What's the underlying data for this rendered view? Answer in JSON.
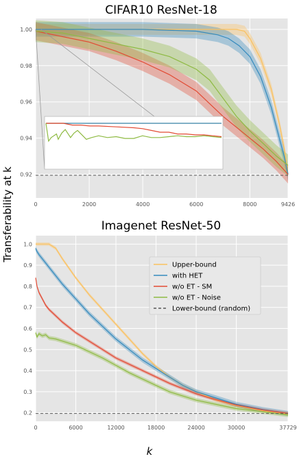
{
  "figure": {
    "ylabel": "Transferability at k",
    "xlabel": "k"
  },
  "colors": {
    "upper": "#fbc15e",
    "het": "#348abd",
    "sm": "#e24a33",
    "noise": "#8eba42",
    "lower": "#555555",
    "panel_bg": "#e5e5e5",
    "grid": "#ffffff"
  },
  "chart_data": [
    {
      "type": "line",
      "title": "CIFAR10 ResNet-18",
      "xlabel": "",
      "ylabel": "",
      "xlim": [
        0,
        9426
      ],
      "ylim": [
        0.907,
        1.006
      ],
      "xticks": [
        "0",
        "2000",
        "4000",
        "6000",
        "8000",
        "9426"
      ],
      "xtick_values": [
        0,
        2000,
        4000,
        6000,
        8000,
        9426
      ],
      "yticks": [
        "0.92",
        "0.94",
        "0.96",
        "0.98",
        "1.00"
      ],
      "ytick_values": [
        0.92,
        0.94,
        0.96,
        0.98,
        1.0
      ],
      "grid": true,
      "legend": "none",
      "series": [
        {
          "key": "upper",
          "x": [
            0,
            2000,
            4000,
            6000,
            7500,
            7800,
            8000,
            8400,
            8800,
            9100,
            9300,
            9426
          ],
          "values": [
            1.0,
            1.0,
            1.0,
            1.0,
            1.0,
            0.999,
            0.995,
            0.984,
            0.967,
            0.948,
            0.933,
            0.92
          ],
          "band": 0.003
        },
        {
          "key": "het",
          "x": [
            0,
            2000,
            4000,
            6000,
            6800,
            7200,
            7600,
            8000,
            8400,
            8800,
            9100,
            9300,
            9426
          ],
          "values": [
            1.0,
            1.0,
            1.0,
            0.999,
            0.997,
            0.995,
            0.991,
            0.985,
            0.974,
            0.957,
            0.94,
            0.929,
            0.92
          ],
          "band": 0.004
        },
        {
          "key": "sm",
          "x": [
            0,
            1000,
            2000,
            3000,
            4000,
            5000,
            6000,
            6500,
            7000,
            7500,
            8000,
            8500,
            9000,
            9426
          ],
          "values": [
            0.999,
            0.996,
            0.993,
            0.988,
            0.982,
            0.975,
            0.966,
            0.959,
            0.952,
            0.946,
            0.94,
            0.934,
            0.927,
            0.92
          ],
          "band": 0.005
        },
        {
          "key": "noise",
          "x": [
            0,
            1000,
            2000,
            3000,
            4000,
            5000,
            6000,
            6500,
            7000,
            7500,
            8000,
            8500,
            9000,
            9426
          ],
          "values": [
            0.999,
            0.998,
            0.995,
            0.992,
            0.989,
            0.985,
            0.978,
            0.972,
            0.962,
            0.952,
            0.944,
            0.937,
            0.93,
            0.925
          ],
          "band": 0.006
        },
        {
          "key": "lower",
          "x": [
            0,
            9426
          ],
          "values": [
            0.9195,
            0.9195
          ],
          "band": 0
        }
      ],
      "inset": {
        "xlim": [
          0,
          1000
        ],
        "ylim": [
          0.95,
          1.0
        ],
        "series": [
          {
            "key": "upper",
            "x": [
              0,
              1000
            ],
            "values": [
              1.0,
              1.0
            ]
          },
          {
            "key": "het",
            "x": [
              0,
              1000
            ],
            "values": [
              1.0,
              1.0
            ]
          },
          {
            "key": "sm",
            "x": [
              0,
              100,
              150,
              200,
              250,
              300,
              400,
              500,
              550,
              600,
              650,
              700,
              750,
              800,
              850,
              900,
              950,
              1000
            ],
            "values": [
              1.0,
              1.0,
              0.998,
              0.998,
              0.997,
              0.997,
              0.996,
              0.995,
              0.994,
              0.992,
              0.99,
              0.99,
              0.988,
              0.988,
              0.987,
              0.987,
              0.986,
              0.985
            ]
          },
          {
            "key": "noise",
            "x": [
              0,
              15,
              30,
              60,
              70,
              90,
              110,
              140,
              160,
              180,
              200,
              230,
              260,
              300,
              350,
              400,
              450,
              500,
              550,
              600,
              650,
              700,
              750,
              800,
              850,
              900,
              950,
              1000
            ],
            "values": [
              1.0,
              0.98,
              0.984,
              0.988,
              0.982,
              0.989,
              0.993,
              0.984,
              0.989,
              0.992,
              0.988,
              0.982,
              0.984,
              0.986,
              0.984,
              0.985,
              0.983,
              0.983,
              0.986,
              0.984,
              0.984,
              0.985,
              0.986,
              0.985,
              0.985,
              0.986,
              0.985,
              0.984
            ]
          }
        ]
      }
    },
    {
      "type": "line",
      "title": "Imagenet ResNet-50",
      "xlabel": "k",
      "ylabel": "",
      "xlim": [
        0,
        37729
      ],
      "ylim": [
        0.16,
        1.04
      ],
      "xticks": [
        "0",
        "6000",
        "12000",
        "18000",
        "24000",
        "30000",
        "37729"
      ],
      "xtick_values": [
        0,
        6000,
        12000,
        18000,
        24000,
        30000,
        37729
      ],
      "yticks": [
        "0.2",
        "0.3",
        "0.4",
        "0.5",
        "0.6",
        "0.7",
        "0.8",
        "0.9",
        "1.0"
      ],
      "ytick_values": [
        0.2,
        0.3,
        0.4,
        0.5,
        0.6,
        0.7,
        0.8,
        0.9,
        1.0
      ],
      "grid": true,
      "legend": "center",
      "series": [
        {
          "key": "upper",
          "name": "Upper-bound",
          "x": [
            0,
            500,
            1000,
            2000,
            3000,
            4000,
            6000,
            8000,
            10000,
            12000,
            14000,
            16000,
            18000,
            20000,
            22000,
            24000,
            27000,
            30000,
            34000,
            37729
          ],
          "values": [
            1.0,
            1.0,
            1.0,
            1.0,
            0.98,
            0.93,
            0.84,
            0.76,
            0.69,
            0.62,
            0.55,
            0.48,
            0.42,
            0.37,
            0.33,
            0.3,
            0.26,
            0.235,
            0.21,
            0.195
          ],
          "band": 0.008
        },
        {
          "key": "het",
          "name": "with HET",
          "x": [
            0,
            100,
            500,
            1000,
            2000,
            3000,
            4000,
            6000,
            8000,
            10000,
            12000,
            14000,
            16000,
            18000,
            20000,
            22000,
            24000,
            27000,
            30000,
            34000,
            37729
          ],
          "values": [
            0.98,
            0.97,
            0.95,
            0.93,
            0.89,
            0.85,
            0.81,
            0.74,
            0.67,
            0.61,
            0.55,
            0.5,
            0.45,
            0.41,
            0.37,
            0.33,
            0.3,
            0.27,
            0.24,
            0.215,
            0.197
          ],
          "band": 0.012
        },
        {
          "key": "sm",
          "name": "w/o ET - SM",
          "x": [
            0,
            200,
            500,
            1000,
            1500,
            2000,
            3000,
            4000,
            6000,
            8000,
            10000,
            12000,
            14000,
            16000,
            18000,
            20000,
            22000,
            24000,
            27000,
            30000,
            34000,
            37729
          ],
          "values": [
            0.84,
            0.8,
            0.77,
            0.74,
            0.71,
            0.69,
            0.66,
            0.63,
            0.58,
            0.54,
            0.5,
            0.46,
            0.43,
            0.4,
            0.37,
            0.34,
            0.315,
            0.29,
            0.262,
            0.237,
            0.213,
            0.197
          ],
          "band": 0.008
        },
        {
          "key": "noise",
          "name": "w/o ET - Noise",
          "x": [
            0,
            200,
            500,
            1000,
            1500,
            2000,
            3000,
            4000,
            5000,
            6000,
            8000,
            10000,
            12000,
            14000,
            16000,
            18000,
            20000,
            22000,
            24000,
            27000,
            30000,
            34000,
            37729
          ],
          "values": [
            0.58,
            0.56,
            0.575,
            0.565,
            0.57,
            0.555,
            0.55,
            0.54,
            0.53,
            0.52,
            0.49,
            0.46,
            0.425,
            0.39,
            0.36,
            0.33,
            0.3,
            0.28,
            0.26,
            0.24,
            0.22,
            0.205,
            0.19
          ],
          "band": 0.01
        },
        {
          "key": "lower",
          "name": "Lower-bound (random)",
          "x": [
            0,
            37729
          ],
          "values": [
            0.197,
            0.197
          ],
          "band": 0
        }
      ]
    }
  ]
}
